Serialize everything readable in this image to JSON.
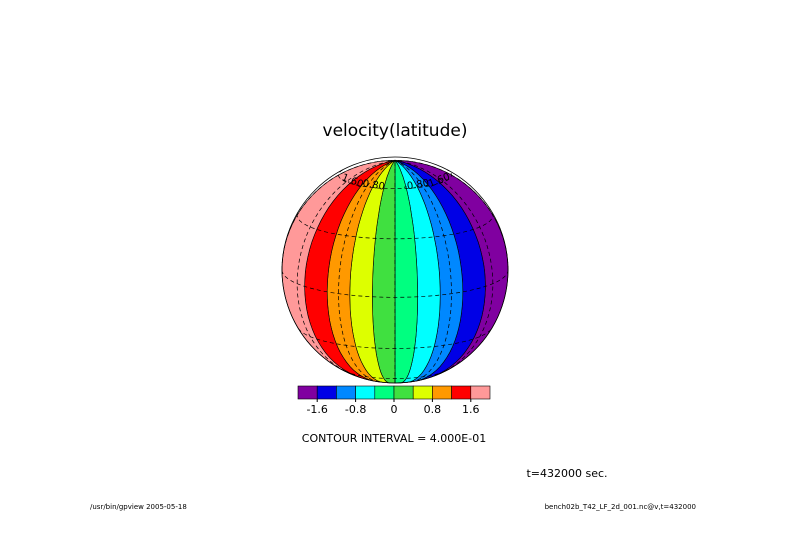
{
  "chart_data": {
    "type": "contour",
    "title": "velocity(latitude)",
    "levels": [
      -2.0,
      -1.6,
      -1.2,
      -0.8,
      -0.4,
      0,
      0.4,
      0.8,
      1.2,
      1.6,
      2.0
    ],
    "colors": [
      "#8000a0",
      "#0000e6",
      "#0088ff",
      "#00ffff",
      "#00ff80",
      "#40e040",
      "#ddff00",
      "#ff9900",
      "#ff0000",
      "#ff9999"
    ],
    "colorbar_ticks": [
      -1.6,
      -0.8,
      0,
      0.8,
      1.6
    ],
    "contour_labels": [
      {
        "value": 1.6,
        "label": "1.60"
      },
      {
        "value": 0.8,
        "label": "0.80"
      },
      {
        "value": -0.8,
        "label": "-0.80"
      },
      {
        "value": -1.6,
        "label": "-1.60"
      }
    ],
    "contour_interval_text": "CONTOUR INTERVAL = 4.000E-01",
    "time_text": "t=432000 sec.",
    "footer_left": "/usr/bin/gpview  2005-05-18",
    "footer_right": "bench02b_T42_LF_2d_001.nc@v,t=432000"
  }
}
